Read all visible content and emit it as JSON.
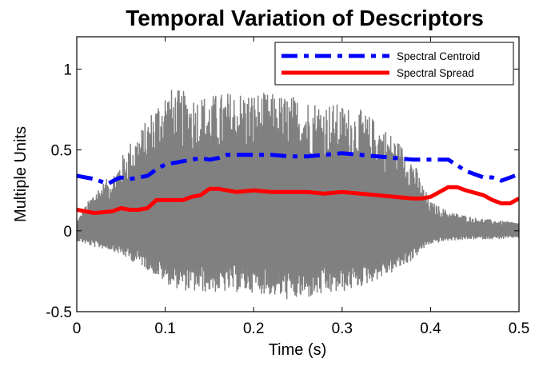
{
  "chart_data": {
    "type": "line",
    "title": "Temporal Variation of Descriptors",
    "xlabel": "Time (s)",
    "ylabel": "Multiple Units",
    "xlim": [
      0,
      0.5
    ],
    "ylim": [
      -0.5,
      1.2
    ],
    "xticks": [
      0,
      0.1,
      0.2,
      0.3,
      0.4,
      0.5
    ],
    "xtick_labels": [
      "0",
      "0.1",
      "0.2",
      "0.3",
      "0.4",
      "0.5"
    ],
    "yticks": [
      -0.5,
      0,
      0.5,
      1
    ],
    "ytick_labels": [
      "-0.5",
      "0",
      "0.5",
      "1"
    ],
    "grid": false,
    "legend_position": "top-right",
    "waveform": {
      "color": "#808080",
      "duration": 0.5,
      "envelope_x": [
        0,
        0.02,
        0.04,
        0.06,
        0.075,
        0.09,
        0.1,
        0.11,
        0.13,
        0.15,
        0.18,
        0.2,
        0.22,
        0.24,
        0.26,
        0.28,
        0.3,
        0.32,
        0.34,
        0.36,
        0.38,
        0.39,
        0.4,
        0.42,
        0.45,
        0.48,
        0.5
      ],
      "envelope_upper": [
        0.06,
        0.25,
        0.35,
        0.55,
        0.65,
        0.8,
        0.88,
        0.88,
        0.85,
        0.84,
        0.87,
        0.86,
        0.85,
        0.84,
        0.82,
        0.8,
        0.78,
        0.75,
        0.68,
        0.58,
        0.45,
        0.3,
        0.18,
        0.12,
        0.08,
        0.06,
        0.05
      ],
      "envelope_lower": [
        -0.06,
        -0.1,
        -0.12,
        -0.18,
        -0.22,
        -0.28,
        -0.32,
        -0.35,
        -0.38,
        -0.38,
        -0.38,
        -0.38,
        -0.4,
        -0.43,
        -0.42,
        -0.4,
        -0.38,
        -0.35,
        -0.3,
        -0.25,
        -0.18,
        -0.12,
        -0.08,
        -0.06,
        -0.05,
        -0.05,
        -0.04
      ]
    },
    "series": [
      {
        "name": "Spectral Centroid",
        "color": "#0000ff",
        "style": "dashdot",
        "x": [
          0,
          0.02,
          0.035,
          0.045,
          0.05,
          0.06,
          0.07,
          0.08,
          0.09,
          0.1,
          0.12,
          0.14,
          0.15,
          0.16,
          0.17,
          0.18,
          0.2,
          0.22,
          0.24,
          0.26,
          0.28,
          0.3,
          0.32,
          0.34,
          0.36,
          0.38,
          0.39,
          0.4,
          0.42,
          0.44,
          0.46,
          0.47,
          0.48,
          0.49,
          0.5
        ],
        "values": [
          0.34,
          0.32,
          0.29,
          0.32,
          0.33,
          0.32,
          0.33,
          0.34,
          0.38,
          0.41,
          0.43,
          0.45,
          0.44,
          0.45,
          0.47,
          0.47,
          0.47,
          0.47,
          0.46,
          0.46,
          0.47,
          0.48,
          0.47,
          0.46,
          0.45,
          0.44,
          0.44,
          0.44,
          0.44,
          0.37,
          0.33,
          0.33,
          0.31,
          0.33,
          0.35
        ]
      },
      {
        "name": "Spectral Spread",
        "color": "#ff0000",
        "style": "solid",
        "x": [
          0,
          0.02,
          0.04,
          0.05,
          0.06,
          0.07,
          0.08,
          0.09,
          0.1,
          0.12,
          0.13,
          0.14,
          0.15,
          0.16,
          0.18,
          0.2,
          0.22,
          0.24,
          0.26,
          0.28,
          0.3,
          0.32,
          0.34,
          0.36,
          0.38,
          0.39,
          0.4,
          0.41,
          0.42,
          0.43,
          0.44,
          0.46,
          0.47,
          0.48,
          0.49,
          0.5
        ],
        "values": [
          0.13,
          0.11,
          0.12,
          0.14,
          0.13,
          0.13,
          0.14,
          0.19,
          0.19,
          0.19,
          0.21,
          0.22,
          0.26,
          0.26,
          0.24,
          0.25,
          0.24,
          0.24,
          0.24,
          0.23,
          0.24,
          0.23,
          0.22,
          0.21,
          0.2,
          0.2,
          0.21,
          0.24,
          0.27,
          0.27,
          0.25,
          0.22,
          0.19,
          0.17,
          0.17,
          0.2
        ]
      }
    ]
  }
}
